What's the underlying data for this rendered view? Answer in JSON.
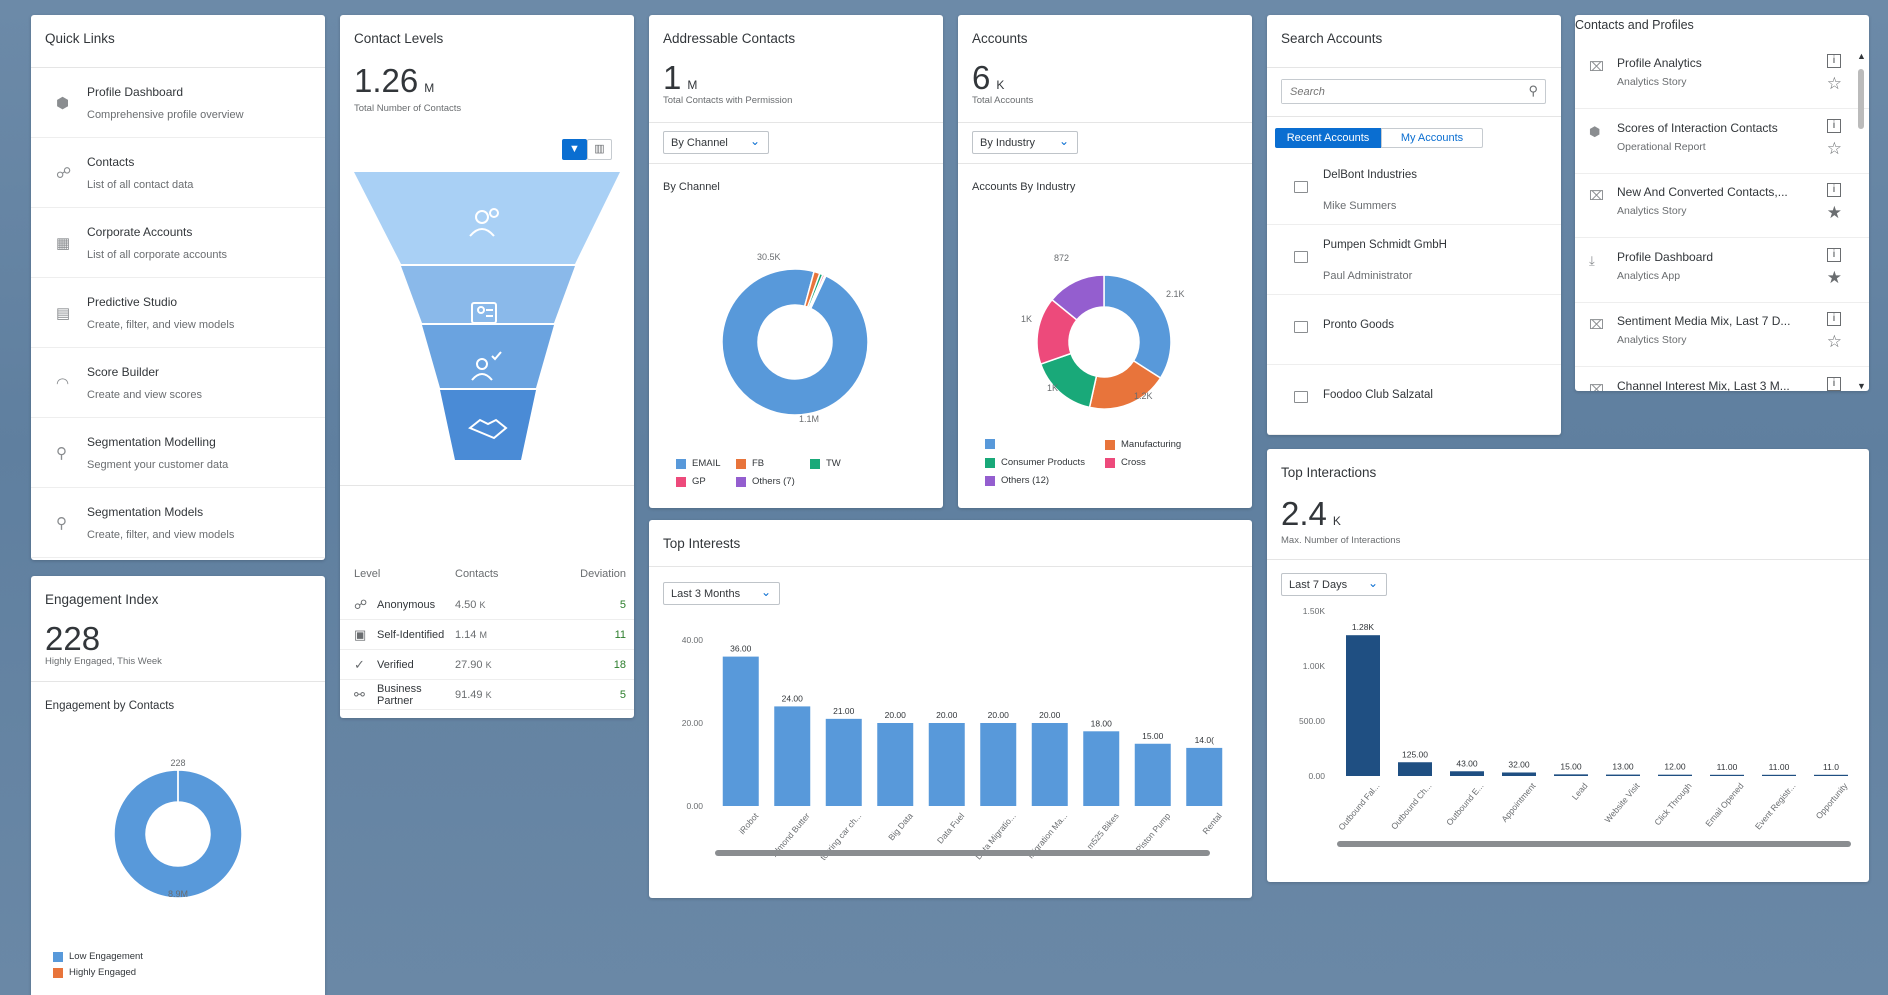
{
  "quick_links": {
    "title": "Quick Links",
    "items": [
      {
        "icon": "hexagon-icon",
        "glyph": "⬢",
        "title": "Profile Dashboard",
        "desc": "Comprehensive profile overview"
      },
      {
        "icon": "contacts-icon",
        "glyph": "☍",
        "title": "Contacts",
        "desc": "List of all contact data"
      },
      {
        "icon": "building-icon",
        "glyph": "▦",
        "title": "Corporate Accounts",
        "desc": "List of all corporate accounts"
      },
      {
        "icon": "studio-icon",
        "glyph": "▤",
        "title": "Predictive Studio",
        "desc": "Create, filter, and view models"
      },
      {
        "icon": "gauge-icon",
        "glyph": "◠",
        "title": "Score Builder",
        "desc": "Create and view scores"
      },
      {
        "icon": "segment-icon",
        "glyph": "⚲",
        "title": "Segmentation Modelling",
        "desc": "Segment your customer data"
      },
      {
        "icon": "segment-model-icon",
        "glyph": "⚲",
        "title": "Segmentation Models",
        "desc": "Create, filter, and view models"
      }
    ]
  },
  "engagement_index": {
    "title": "Engagement Index",
    "kpi": "228",
    "desc": "Highly Engaged, This Week",
    "subtitle": "Engagement by Contacts",
    "top_label": "228",
    "bottom_label": "8.9M",
    "legend": [
      {
        "label": "Low Engagement",
        "color": "#5899da"
      },
      {
        "label": "Highly Engaged",
        "color": "#e8743b"
      }
    ]
  },
  "contact_levels": {
    "title": "Contact Levels",
    "kpi": "1.26",
    "unit": "M",
    "desc": "Total Number of Contacts",
    "table_headers": {
      "level": "Level",
      "contacts": "Contacts",
      "deviation": "Deviation"
    },
    "rows": [
      {
        "icon": "anonymous-icon",
        "level": "Anonymous",
        "contacts": "4.50",
        "unit": "K",
        "deviation": "5"
      },
      {
        "icon": "self-identified-icon",
        "level": "Self-Identified",
        "contacts": "1.14",
        "unit": "M",
        "deviation": "11"
      },
      {
        "icon": "verified-icon",
        "level": "Verified",
        "contacts": "27.90",
        "unit": "K",
        "deviation": "18"
      },
      {
        "icon": "partner-icon",
        "level": "Business Partner",
        "contacts": "91.49",
        "unit": "K",
        "deviation": "5"
      }
    ],
    "funnel_colors": [
      "#a9d0f5",
      "#8ab9ea",
      "#6aa3e0",
      "#4a8bd6"
    ]
  },
  "addressable_contacts": {
    "title": "Addressable Contacts",
    "kpi": "1",
    "unit": "M",
    "desc": "Total Contacts with Permission",
    "select": "By Channel",
    "subtitle": "By Channel",
    "label_small": "30.5K",
    "label_big": "1.1M",
    "legend": [
      {
        "label": "EMAIL",
        "color": "#5899da"
      },
      {
        "label": "FB",
        "color": "#e8743b"
      },
      {
        "label": "TW",
        "color": "#19a979"
      },
      {
        "label": "GP",
        "color": "#ed4a7b"
      },
      {
        "label": "Others (7)",
        "color": "#945ecf"
      }
    ]
  },
  "accounts": {
    "title": "Accounts",
    "kpi": "6",
    "unit": "K",
    "desc": "Total Accounts",
    "select": "By Industry",
    "subtitle": "Accounts By Industry",
    "labels": [
      "872",
      "2.1K",
      "1.2K",
      "1K",
      "1K"
    ],
    "legend": [
      {
        "label": "",
        "color": "#5899da"
      },
      {
        "label": "Manufacturing",
        "color": "#e8743b"
      },
      {
        "label": "Consumer Products",
        "color": "#19a979"
      },
      {
        "label": "Cross",
        "color": "#ed4a7b"
      },
      {
        "label": "Others (12)",
        "color": "#945ecf"
      }
    ]
  },
  "search_accounts": {
    "title": "Search Accounts",
    "placeholder": "Search",
    "tab_recent": "Recent Accounts",
    "tab_my": "My Accounts",
    "items": [
      {
        "name": "DelBont Industries",
        "person": "Mike Summers"
      },
      {
        "name": "Pumpen Schmidt GmbH",
        "person": "Paul Administrator"
      },
      {
        "name": "Pronto Goods",
        "person": ""
      },
      {
        "name": "Foodoo Club Salzatal",
        "person": ""
      }
    ]
  },
  "contacts_profiles": {
    "title": "Contacts and Profiles",
    "items": [
      {
        "icon": "story-icon",
        "glyph": "⌧",
        "title": "Profile Analytics",
        "desc": "Analytics Story",
        "star": "☆"
      },
      {
        "icon": "report-icon",
        "glyph": "⬢",
        "title": "Scores of Interaction Contacts",
        "desc": "Operational Report",
        "star": "☆"
      },
      {
        "icon": "story-icon",
        "glyph": "⌧",
        "title": "New And Converted Contacts,...",
        "desc": "Analytics Story",
        "star": "★"
      },
      {
        "icon": "app-icon",
        "glyph": "⤓",
        "title": "Profile Dashboard",
        "desc": "Analytics App",
        "star": "★"
      },
      {
        "icon": "story-icon",
        "glyph": "⌧",
        "title": "Sentiment Media Mix, Last 7 D...",
        "desc": "Analytics Story",
        "star": "☆"
      },
      {
        "icon": "story-icon",
        "glyph": "⌧",
        "title": "Channel Interest Mix, Last 3 M...",
        "desc": "",
        "star": ""
      }
    ]
  },
  "top_interests": {
    "title": "Top Interests",
    "select": "Last 3 Months"
  },
  "top_interactions": {
    "title": "Top Interactions",
    "kpi": "2.4",
    "unit": "K",
    "desc": "Max. Number of Interactions",
    "select": "Last 7 Days"
  },
  "chart_data": [
    {
      "type": "bar",
      "title": "Top Interests",
      "categories": [
        "iRobot",
        "Almond Butter",
        "touring car ch...",
        "Big Data",
        "Data Fuel",
        "Data Migratio...",
        "Migration Ma...",
        "m525 Bikes",
        "Piston Pump",
        "Rental"
      ],
      "values": [
        36.0,
        24.0,
        21.0,
        20.0,
        20.0,
        20.0,
        20.0,
        18.0,
        15.0,
        14.0
      ],
      "value_labels": [
        "36.00",
        "24.00",
        "21.00",
        "20.00",
        "20.00",
        "20.00",
        "20.00",
        "18.00",
        "15.00",
        "14.0("
      ],
      "yticks": [
        "40.00",
        "20.00",
        "0.00"
      ],
      "ylim": [
        0,
        40
      ],
      "color": "#5899da"
    },
    {
      "type": "bar",
      "title": "Top Interactions",
      "categories": [
        "Outbound Fal...",
        "Outbound Ch...",
        "Outbound E...",
        "Appointment",
        "Lead",
        "Website Visit",
        "Click Through",
        "Email Opened",
        "Event Registr...",
        "Opportunity"
      ],
      "values": [
        1280,
        125,
        43,
        32,
        15,
        13,
        12,
        11,
        11,
        11
      ],
      "value_labels": [
        "1.28K",
        "125.00",
        "43.00",
        "32.00",
        "15.00",
        "13.00",
        "12.00",
        "11.00",
        "11.00",
        "11.0"
      ],
      "yticks": [
        "1.50K",
        "1.00K",
        "500.00",
        "0.00"
      ],
      "ylim": [
        0,
        1500
      ],
      "color": "#1f4f82"
    },
    {
      "type": "pie",
      "title": "By Channel",
      "categories": [
        "EMAIL",
        "FB",
        "TW",
        "GP",
        "Others (7)"
      ],
      "values": [
        1100,
        15,
        8,
        5,
        3
      ]
    },
    {
      "type": "pie",
      "title": "Accounts By Industry",
      "categories": [
        "",
        "Manufacturing",
        "Consumer Products",
        "Cross",
        "Others (12)"
      ],
      "values": [
        2100,
        1200,
        1000,
        1000,
        872
      ]
    },
    {
      "type": "pie",
      "title": "Engagement by Contacts",
      "categories": [
        "Low Engagement",
        "Highly Engaged"
      ],
      "values": [
        8900000,
        228
      ]
    }
  ]
}
